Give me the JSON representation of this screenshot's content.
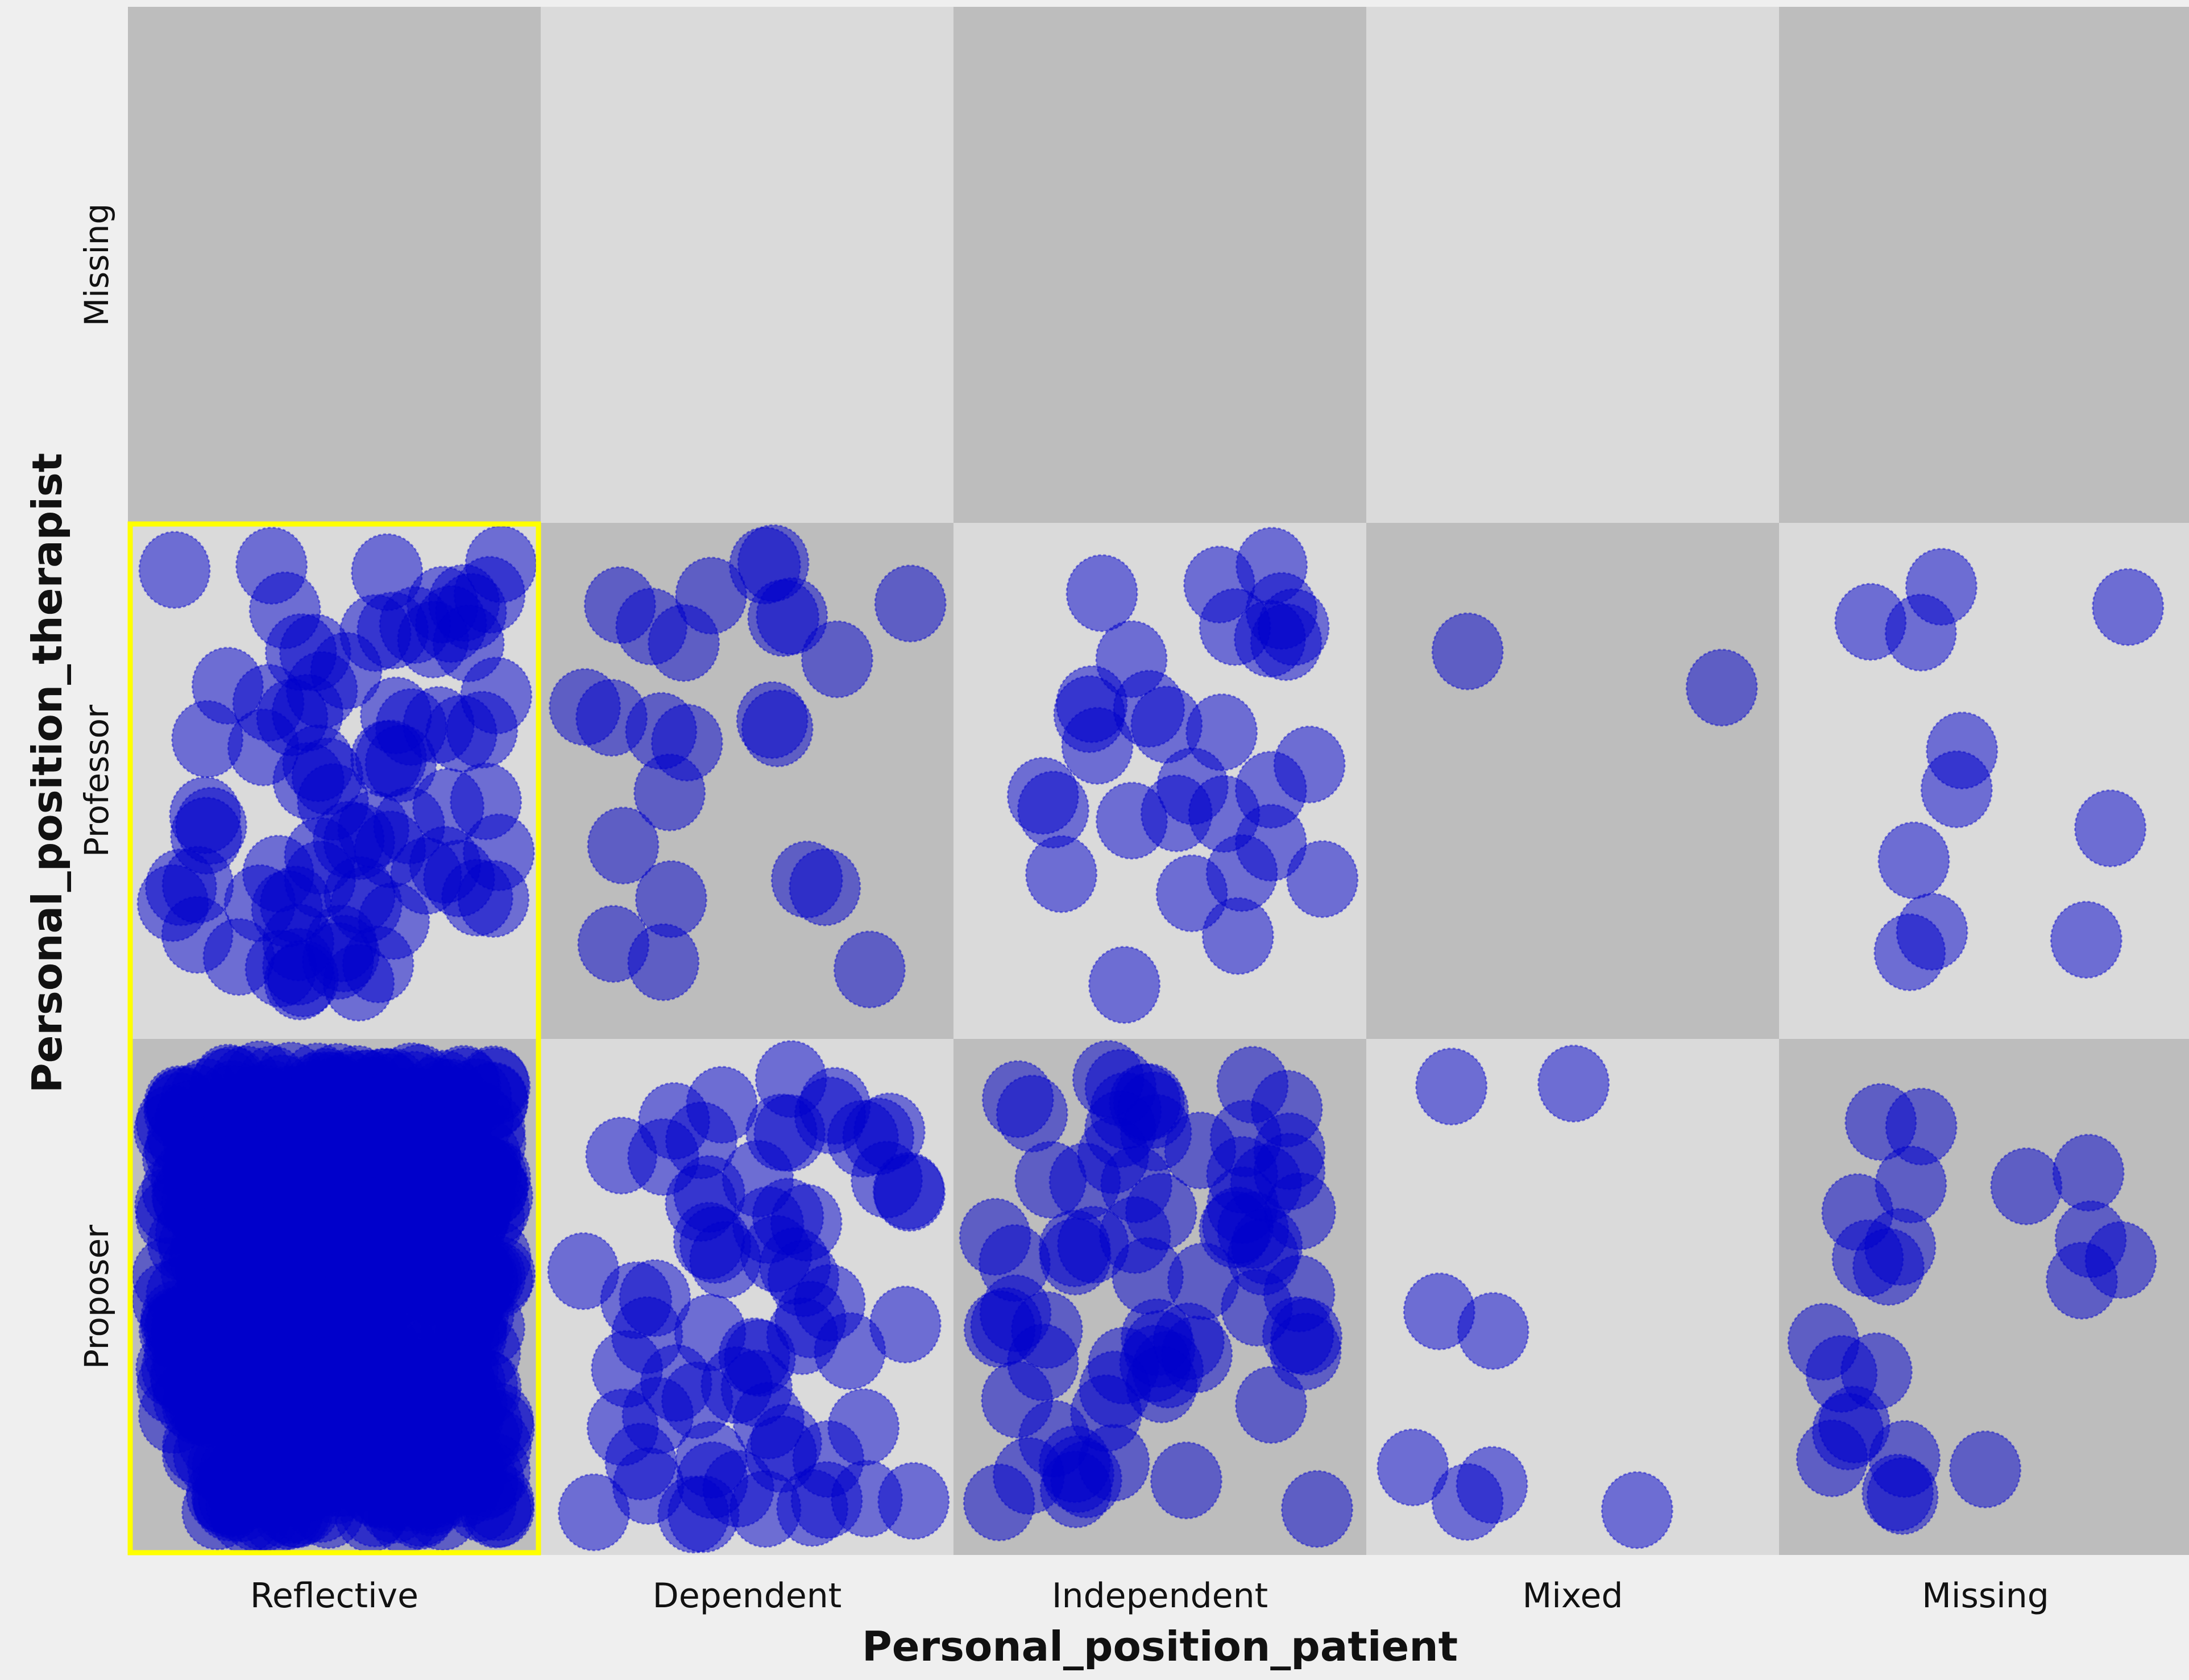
{
  "chart_data": {
    "type": "scatter",
    "subtype": "jitter-matrix",
    "xlabel": "Personal_position_patient",
    "ylabel": "Personal_position_therapist",
    "x_categories": [
      "Reflective",
      "Dependent",
      "Independent",
      "Mixed",
      "Missing"
    ],
    "y_categories": [
      "Missing",
      "Professor",
      "Proposer"
    ],
    "highlighted_x_category": "Reflective",
    "marker_color": "#0000cc",
    "colors": {
      "cell_dark": "#bdbdbd",
      "cell_light": "#dadada",
      "highlight": "#ffff00",
      "background": "#efefef"
    },
    "cells": [
      {
        "x": "Reflective",
        "y": "Missing",
        "count": 0
      },
      {
        "x": "Dependent",
        "y": "Missing",
        "count": 0
      },
      {
        "x": "Independent",
        "y": "Missing",
        "count": 0
      },
      {
        "x": "Mixed",
        "y": "Missing",
        "count": 0
      },
      {
        "x": "Missing",
        "y": "Missing",
        "count": 0
      },
      {
        "x": "Reflective",
        "y": "Professor",
        "count": 78
      },
      {
        "x": "Dependent",
        "y": "Professor",
        "count": 24
      },
      {
        "x": "Independent",
        "y": "Professor",
        "count": 30
      },
      {
        "x": "Mixed",
        "y": "Professor",
        "count": 2
      },
      {
        "x": "Missing",
        "y": "Professor",
        "count": 11
      },
      {
        "x": "Reflective",
        "y": "Proposer",
        "count": 600
      },
      {
        "x": "Dependent",
        "y": "Proposer",
        "count": 65
      },
      {
        "x": "Independent",
        "y": "Proposer",
        "count": 70
      },
      {
        "x": "Mixed",
        "y": "Proposer",
        "count": 8
      },
      {
        "x": "Missing",
        "y": "Proposer",
        "count": 22
      }
    ]
  }
}
